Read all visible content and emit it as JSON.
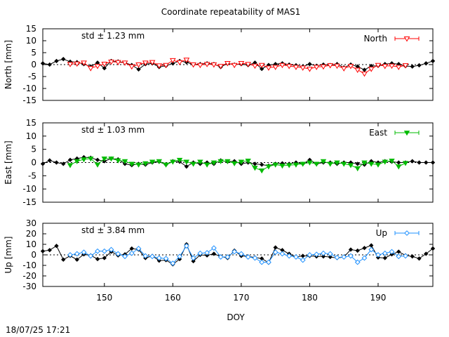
{
  "title": "Coordinate repeatability of MAS1",
  "timestamp": "18/07/25 17:21",
  "chart_data": {
    "type": "line",
    "title": "Coordinate repeatability of MAS1",
    "xlabel": "DOY",
    "xlim": [
      141,
      198
    ],
    "xticks": [
      150,
      160,
      170,
      180,
      190
    ],
    "panels": [
      {
        "ylabel": "North [mm]",
        "ylim": [
          -15,
          15
        ],
        "yticks": [
          -15,
          -10,
          -5,
          0,
          5,
          10,
          15
        ],
        "std_label": "std ± 1.23 mm",
        "std_color": "#ff0000",
        "series": [
          {
            "name": "North",
            "color": "#ff0000",
            "marker": "open-triangle-down",
            "x": [
              145,
              146,
              147,
              148,
              149,
              150,
              151,
              152,
              153,
              154,
              155,
              156,
              157,
              158,
              159,
              160,
              161,
              162,
              163,
              164,
              165,
              166,
              167,
              168,
              169,
              170,
              171,
              172,
              173,
              174,
              175,
              176,
              177,
              178,
              179,
              180,
              181,
              182,
              183,
              184,
              185,
              186,
              187,
              188,
              189,
              190,
              191,
              192,
              193,
              194
            ],
            "y": [
              0.2,
              0.4,
              0.8,
              -1.5,
              -0.6,
              0.3,
              1.2,
              1.0,
              0.8,
              -0.8,
              0.0,
              0.8,
              1.0,
              -0.4,
              -0.2,
              1.8,
              1.0,
              2.0,
              0.0,
              -0.2,
              0.2,
              0.0,
              -0.6,
              0.6,
              -0.2,
              0.6,
              0.2,
              -0.5,
              -0.2,
              -1.3,
              -1.0,
              -0.2,
              -0.6,
              -1.0,
              -1.3,
              -1.8,
              -1.0,
              -0.8,
              -0.3,
              -0.5,
              -1.6,
              -0.6,
              -2.2,
              -3.8,
              -1.8,
              -0.2,
              -0.6,
              -0.5,
              -1.0,
              -0.3
            ]
          },
          {
            "name": "",
            "color": "#000000",
            "marker": "filled-diamond",
            "x": [
              141,
              142,
              143,
              144,
              145,
              146,
              147,
              148,
              149,
              150,
              151,
              152,
              153,
              154,
              155,
              156,
              157,
              158,
              159,
              160,
              161,
              162,
              163,
              164,
              165,
              166,
              167,
              168,
              169,
              170,
              171,
              172,
              173,
              174,
              175,
              176,
              177,
              178,
              179,
              180,
              181,
              182,
              183,
              184,
              185,
              186,
              187,
              188,
              189,
              190,
              191,
              192,
              193,
              194,
              195,
              196,
              197,
              198
            ],
            "y": [
              0.5,
              0.0,
              1.5,
              2.3,
              1.2,
              1.0,
              0.2,
              -0.8,
              0.8,
              -1.5,
              1.5,
              1.3,
              0.8,
              -0.2,
              -2.0,
              0.2,
              0.5,
              -1.0,
              -0.5,
              0.5,
              1.5,
              1.0,
              0.0,
              0.2,
              0.5,
              0.2,
              -1.0,
              0.5,
              0.0,
              0.2,
              -0.2,
              0.8,
              -1.8,
              -0.2,
              0.2,
              0.5,
              0.0,
              -0.3,
              -0.8,
              0.2,
              -0.5,
              0.0,
              -0.2,
              0.2,
              -1.2,
              0.0,
              -0.8,
              -2.2,
              -0.6,
              -0.5,
              0.2,
              0.5,
              0.2,
              -0.6,
              -0.8,
              -0.3,
              0.5,
              1.5
            ]
          }
        ]
      },
      {
        "ylabel": "East [mm]",
        "ylim": [
          -15,
          15
        ],
        "yticks": [
          -15,
          -10,
          -5,
          0,
          5,
          10,
          15
        ],
        "std_label": "std ± 1.03 mm",
        "std_color": "#00bb00",
        "series": [
          {
            "name": "East",
            "color": "#00bb00",
            "marker": "filled-triangle-down",
            "x": [
              145,
              146,
              147,
              148,
              149,
              150,
              151,
              152,
              153,
              154,
              155,
              156,
              157,
              158,
              159,
              160,
              161,
              162,
              163,
              164,
              165,
              166,
              167,
              168,
              169,
              170,
              171,
              172,
              173,
              174,
              175,
              176,
              177,
              178,
              179,
              180,
              181,
              182,
              183,
              184,
              185,
              186,
              187,
              188,
              189,
              190,
              191,
              192,
              193,
              194
            ],
            "y": [
              -1.0,
              0.5,
              1.2,
              1.5,
              -0.8,
              1.5,
              1.5,
              0.8,
              0.5,
              -0.5,
              -0.8,
              -0.3,
              0.3,
              0.5,
              -0.8,
              0.3,
              1.0,
              0.3,
              -0.5,
              0.3,
              -0.8,
              0.0,
              0.5,
              0.5,
              -0.3,
              0.3,
              0.7,
              -2.0,
              -3.0,
              -1.5,
              -0.8,
              -1.2,
              -1.0,
              -0.8,
              -0.5,
              0.0,
              -0.5,
              0.5,
              -0.5,
              0.0,
              -0.5,
              -1.0,
              -2.2,
              0.0,
              -0.5,
              -0.8,
              0.3,
              0.7,
              -1.5,
              -0.2
            ]
          },
          {
            "name": "",
            "color": "#000000",
            "marker": "filled-diamond",
            "x": [
              141,
              142,
              143,
              144,
              145,
              146,
              147,
              148,
              149,
              150,
              151,
              152,
              153,
              154,
              155,
              156,
              157,
              158,
              159,
              160,
              161,
              162,
              163,
              164,
              165,
              166,
              167,
              168,
              169,
              170,
              171,
              172,
              173,
              174,
              175,
              176,
              177,
              178,
              179,
              180,
              181,
              182,
              183,
              184,
              185,
              186,
              187,
              188,
              189,
              190,
              191,
              192,
              193,
              194,
              195,
              196,
              197,
              198
            ],
            "y": [
              -0.5,
              0.8,
              0.0,
              -0.5,
              1.0,
              1.5,
              2.0,
              1.8,
              1.0,
              0.5,
              1.5,
              1.2,
              -0.5,
              -1.0,
              -0.5,
              -0.8,
              0.0,
              0.3,
              -0.8,
              0.5,
              0.3,
              -1.5,
              0.0,
              -0.5,
              0.0,
              -0.5,
              0.8,
              0.3,
              0.5,
              -0.5,
              0.0,
              -0.5,
              -0.8,
              -1.2,
              -0.5,
              -0.3,
              -0.5,
              0.0,
              -0.5,
              1.0,
              -0.5,
              0.0,
              0.0,
              -0.5,
              0.0,
              0.0,
              -0.5,
              -0.8,
              0.5,
              0.0,
              0.5,
              0.3,
              0.0,
              0.0,
              0.5,
              0.0,
              0.0,
              0.0
            ]
          }
        ]
      },
      {
        "ylabel": "Up [mm]",
        "ylim": [
          -30,
          30
        ],
        "yticks": [
          -30,
          -20,
          -10,
          0,
          10,
          20,
          30
        ],
        "std_label": "std ± 3.84 mm",
        "std_color": "#1e90ff",
        "series": [
          {
            "name": "Up",
            "color": "#1e90ff",
            "marker": "open-diamond",
            "x": [
              145,
              146,
              147,
              148,
              149,
              150,
              151,
              152,
              153,
              154,
              155,
              156,
              157,
              158,
              159,
              160,
              161,
              162,
              163,
              164,
              165,
              166,
              167,
              168,
              169,
              170,
              171,
              172,
              173,
              174,
              175,
              176,
              177,
              178,
              179,
              180,
              181,
              182,
              183,
              184,
              185,
              186,
              187,
              188,
              189,
              190,
              191,
              192,
              193,
              194
            ],
            "y": [
              0.0,
              1.0,
              2.5,
              -1.0,
              3.5,
              3.5,
              5.0,
              1.0,
              -1.5,
              1.5,
              6.0,
              -1.0,
              -1.5,
              -3.0,
              -3.5,
              -8.0,
              -1.5,
              8.5,
              -3.0,
              1.5,
              2.0,
              6.5,
              -2.0,
              -2.0,
              3.0,
              1.0,
              -2.0,
              -3.0,
              -7.0,
              -7.0,
              2.5,
              1.0,
              -1.0,
              -2.0,
              -5.0,
              0.0,
              0.5,
              1.5,
              1.0,
              -2.5,
              -2.0,
              -1.0,
              -7.0,
              -3.0,
              5.0,
              0.0,
              1.5,
              3.0,
              -1.5,
              -1.0
            ]
          },
          {
            "name": "",
            "color": "#000000",
            "marker": "filled-diamond",
            "x": [
              141,
              142,
              143,
              144,
              145,
              146,
              147,
              148,
              149,
              150,
              151,
              152,
              153,
              154,
              155,
              156,
              157,
              158,
              159,
              160,
              161,
              162,
              163,
              164,
              165,
              166,
              167,
              168,
              169,
              170,
              171,
              172,
              173,
              174,
              175,
              176,
              177,
              178,
              179,
              180,
              181,
              182,
              183,
              184,
              185,
              186,
              187,
              188,
              189,
              190,
              191,
              192,
              193,
              194,
              195,
              196,
              197,
              198
            ],
            "y": [
              3.5,
              4.5,
              8.5,
              -4.5,
              -1.0,
              -4.5,
              0.5,
              -0.5,
              -4.0,
              -3.0,
              3.0,
              -0.5,
              0.5,
              6.0,
              5.0,
              -3.0,
              -1.0,
              -5.5,
              -5.0,
              -9.0,
              -4.0,
              10.0,
              -6.0,
              0.0,
              -0.5,
              1.0,
              -1.5,
              -3.0,
              4.0,
              -1.0,
              -1.5,
              -2.5,
              -3.5,
              -7.5,
              7.0,
              4.5,
              1.0,
              -2.0,
              -1.0,
              -1.0,
              -1.5,
              -1.5,
              -2.0,
              -3.0,
              -2.0,
              5.0,
              4.0,
              6.5,
              9.0,
              -2.5,
              -3.0,
              0.5,
              3.0,
              -0.5,
              -1.5,
              -3.5,
              1.0,
              6.0
            ]
          }
        ]
      }
    ]
  }
}
